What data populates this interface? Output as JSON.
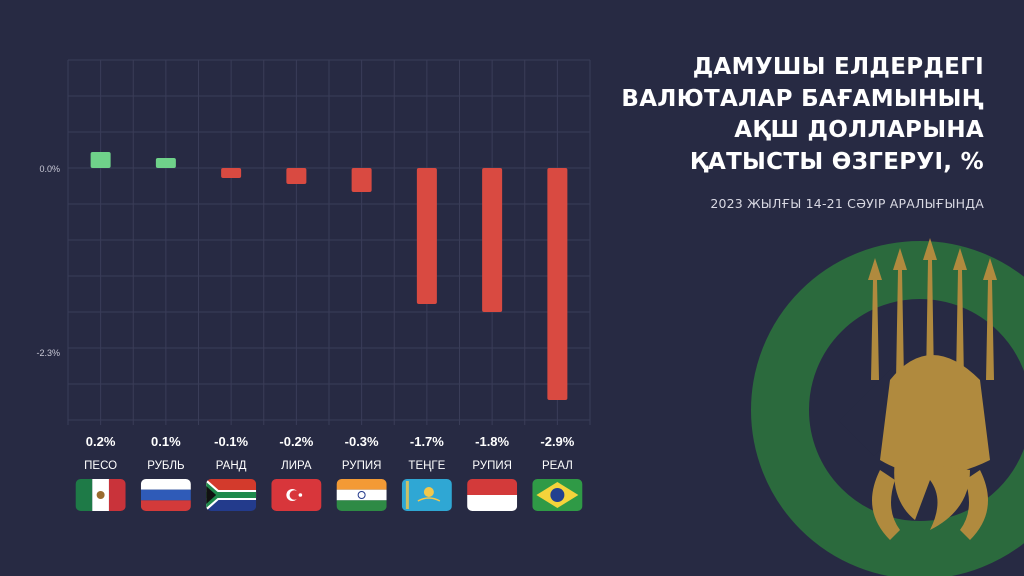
{
  "title_lines": [
    "ДАМУШЫ ЕЛДЕРДЕГІ",
    "ВАЛЮТАЛАР БАҒАМЫНЫҢ",
    "АҚШ ДОЛЛАРЫНА",
    "ҚАТЫСТЫ ӨЗГЕРУІ, %"
  ],
  "subtitle": "2023 ЖЫЛҒЫ 14-21 СӘУІР АРАЛЫҒЫНДА",
  "colors": {
    "background": "#272a43",
    "positive": "#6fd28a",
    "negative": "#d94a41",
    "grid": "#3a3d58",
    "emblem_green": "#2b6a3d",
    "emblem_gold": "#b08a3e"
  },
  "chart_data": {
    "type": "bar",
    "categories": [
      "ПЕСО",
      "РУБЛЬ",
      "РАНД",
      "ЛИРА",
      "РУПИЯ",
      "ТЕҢГЕ",
      "РУПИЯ",
      "РЕАЛ"
    ],
    "values": [
      0.2,
      0.1,
      -0.1,
      -0.2,
      -0.3,
      -1.7,
      -1.8,
      -2.9
    ],
    "value_labels": [
      "0.2%",
      "0.1%",
      "-0.1%",
      "-0.2%",
      "-0.3%",
      "-1.7%",
      "-1.8%",
      "-2.9%"
    ],
    "flags": [
      "mexico",
      "russia",
      "south-africa",
      "turkey",
      "india",
      "kazakhstan",
      "indonesia",
      "brazil"
    ],
    "y_ticks": [
      {
        "value": 0,
        "label": "0.0%"
      },
      {
        "value": -2.3,
        "label": "-2.3%"
      }
    ],
    "ylim": [
      -3.0,
      0.75
    ],
    "grid": true,
    "legend": "none"
  }
}
